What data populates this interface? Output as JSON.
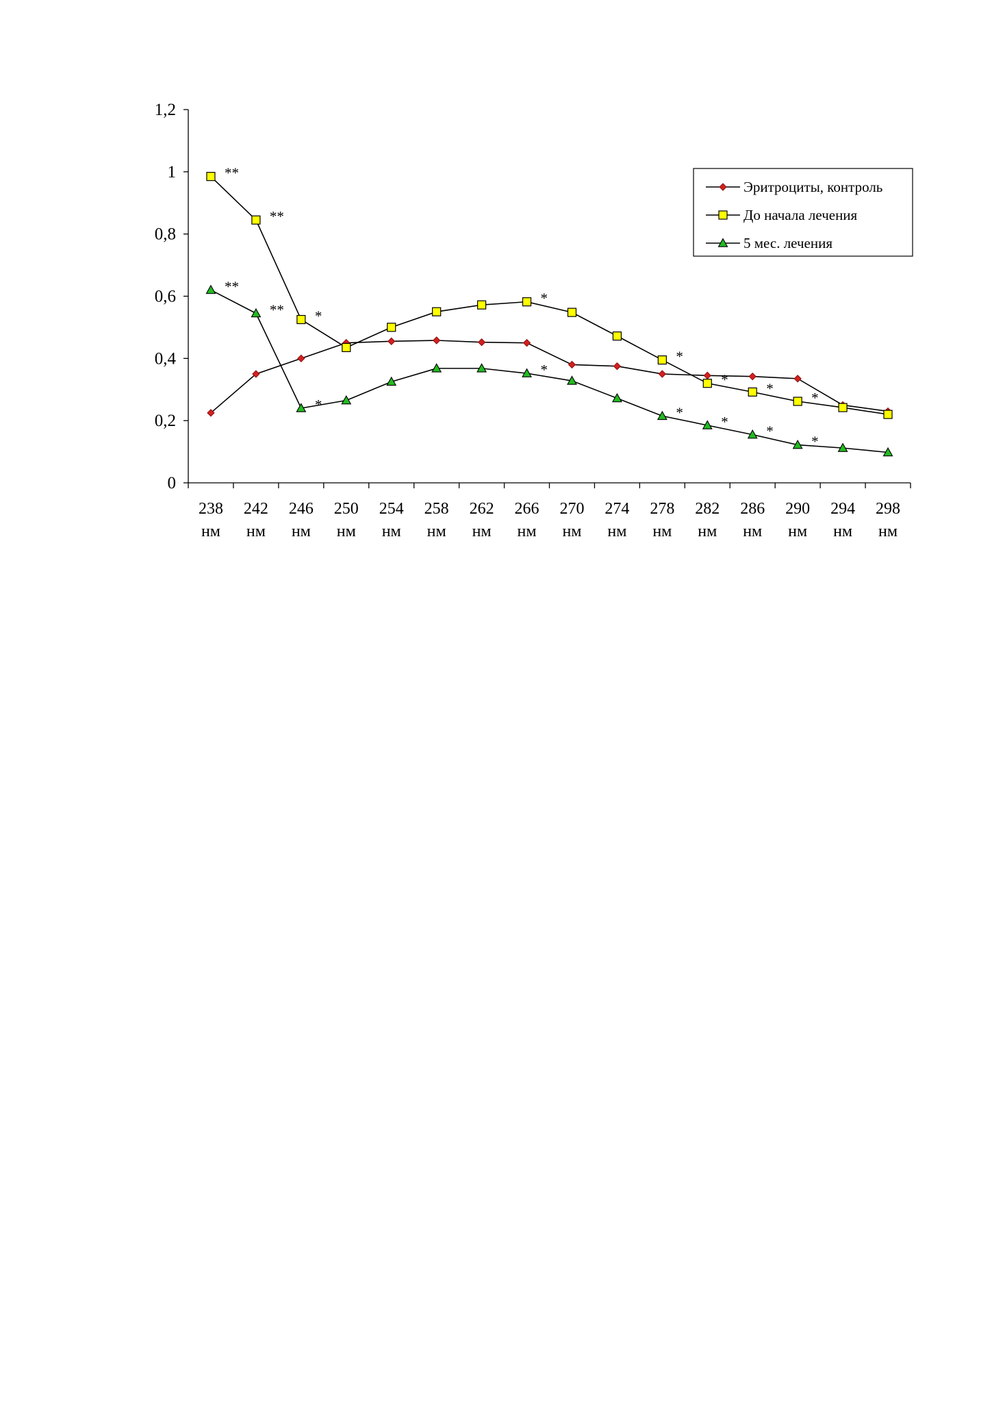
{
  "chart_data": {
    "type": "line",
    "categories": [
      "238 нм",
      "242 нм",
      "246 нм",
      "250 нм",
      "254 нм",
      "258 нм",
      "262 нм",
      "266 нм",
      "270 нм",
      "274 нм",
      "278 нм",
      "282 нм",
      "286 нм",
      "290 нм",
      "294 нм",
      "298 нм"
    ],
    "category_lines": [
      [
        "238",
        "нм"
      ],
      [
        "242",
        "нм"
      ],
      [
        "246",
        "нм"
      ],
      [
        "250",
        "нм"
      ],
      [
        "254",
        "нм"
      ],
      [
        "258",
        "нм"
      ],
      [
        "262",
        "нм"
      ],
      [
        "266",
        "нм"
      ],
      [
        "270",
        "нм"
      ],
      [
        "274",
        "нм"
      ],
      [
        "278",
        "нм"
      ],
      [
        "282",
        "нм"
      ],
      [
        "286",
        "нм"
      ],
      [
        "290",
        "нм"
      ],
      [
        "294",
        "нм"
      ],
      [
        "298",
        "нм"
      ]
    ],
    "ylim": [
      0,
      1.2
    ],
    "yticks": [
      0,
      0.2,
      0.4,
      0.6,
      0.8,
      1,
      1.2
    ],
    "ytick_labels": [
      "0",
      "0,2",
      "0,4",
      "0,6",
      "0,8",
      "1",
      "1,2"
    ],
    "title": "",
    "xlabel": "",
    "ylabel": "",
    "grid": false,
    "legend_position": "top-right",
    "series": [
      {
        "name": "Эритроциты, контроль",
        "marker": "diamond",
        "color": "#d42020",
        "values": [
          0.225,
          0.35,
          0.4,
          0.45,
          0.455,
          0.458,
          0.452,
          0.45,
          0.38,
          0.375,
          0.35,
          0.345,
          0.342,
          0.335,
          0.25,
          0.23
        ],
        "annotations": [
          "",
          "",
          "",
          "",
          "",
          "",
          "",
          "",
          "",
          "",
          "",
          "",
          "",
          "",
          "",
          ""
        ]
      },
      {
        "name": "До начала лечения",
        "marker": "square",
        "color": "#ffff00",
        "values": [
          0.985,
          0.845,
          0.525,
          0.435,
          0.5,
          0.55,
          0.572,
          0.582,
          0.548,
          0.472,
          0.395,
          0.32,
          0.292,
          0.262,
          0.242,
          0.22
        ],
        "annotations": [
          "**",
          "**",
          "*",
          "",
          "",
          "",
          "",
          "*",
          "",
          "",
          "*",
          "*",
          "*",
          "*",
          "",
          ""
        ]
      },
      {
        "name": "5 мес. лечения",
        "marker": "triangle",
        "color": "#22bb22",
        "values": [
          0.62,
          0.545,
          0.24,
          0.265,
          0.325,
          0.368,
          0.368,
          0.352,
          0.328,
          0.272,
          0.215,
          0.185,
          0.155,
          0.122,
          0.112,
          0.098
        ],
        "annotations": [
          "**",
          "**",
          "*",
          "",
          "",
          "",
          "",
          "*",
          "",
          "",
          "*",
          "*",
          "*",
          "*",
          "",
          ""
        ]
      }
    ]
  }
}
